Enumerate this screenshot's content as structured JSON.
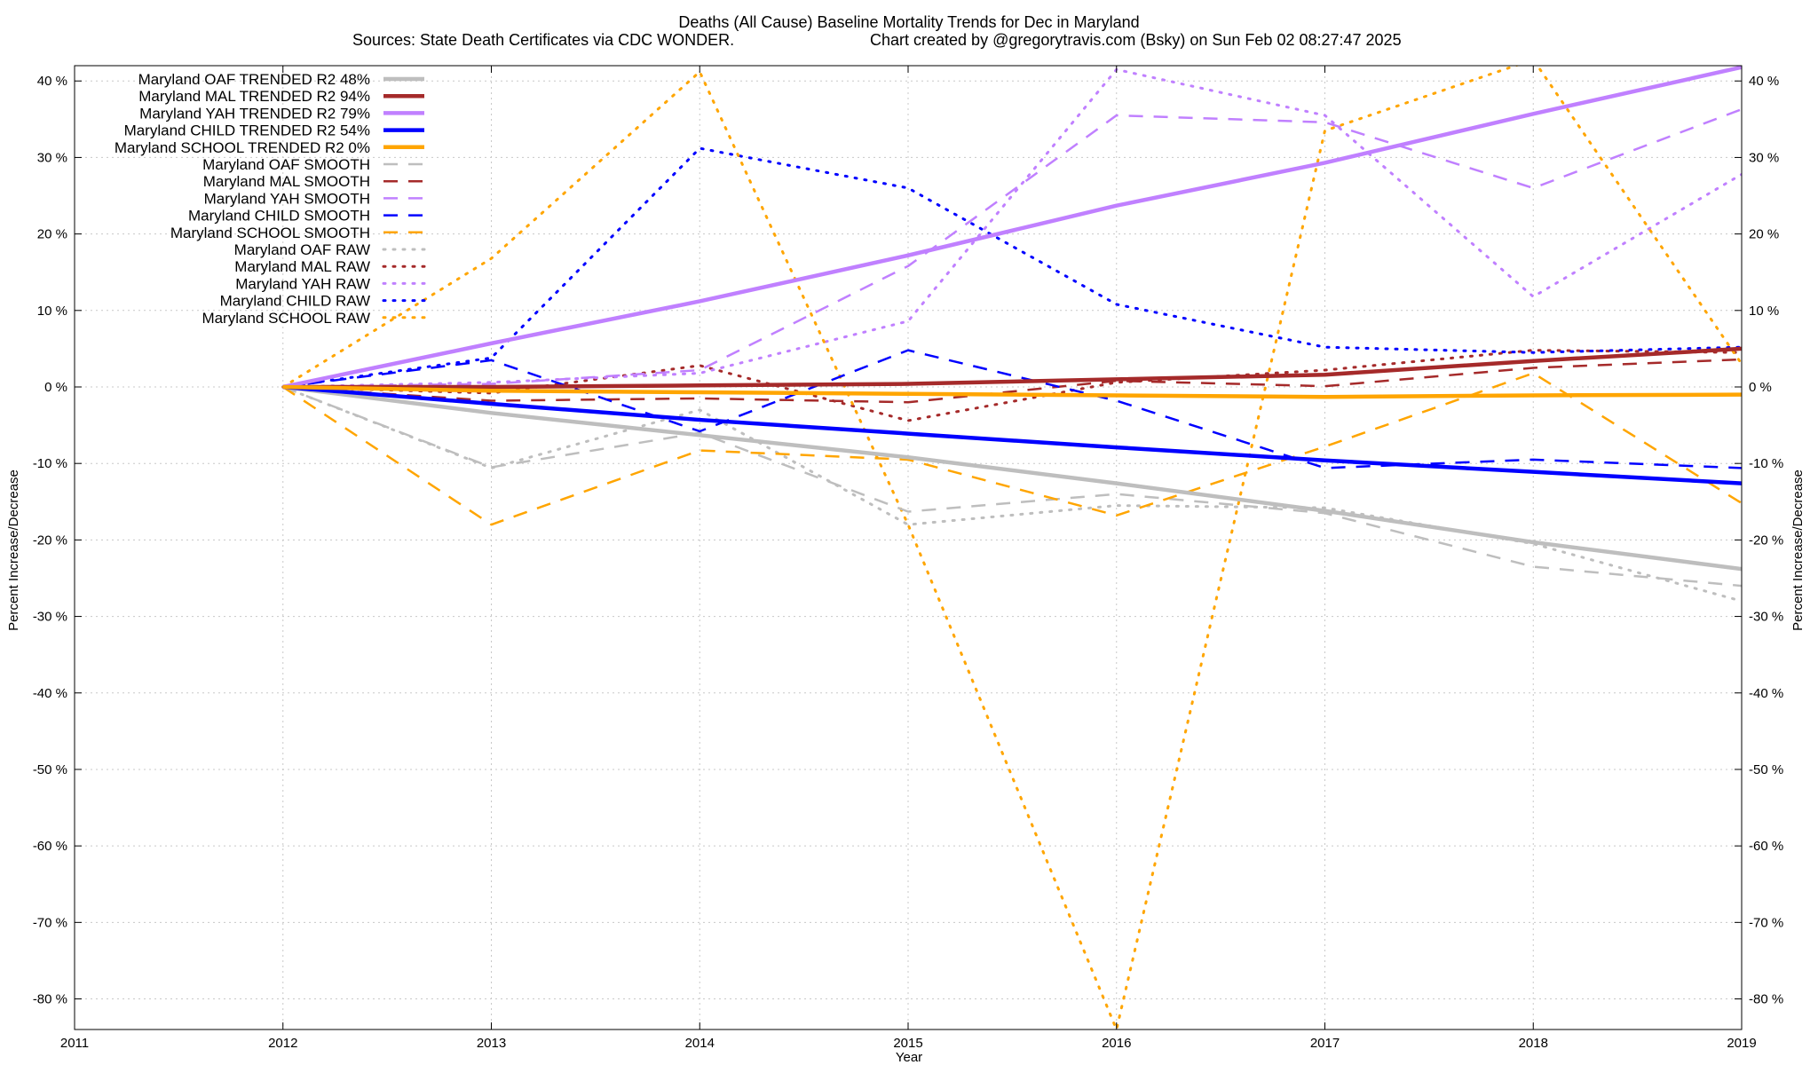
{
  "chart_data": {
    "type": "line",
    "title": "Deaths (All Cause)  Baseline Mortality Trends for Dec in Maryland",
    "subtitle_left": "Sources: State Death Certificates via CDC WONDER.",
    "subtitle_right": "Chart created by @gregorytravis.com (Bsky) on Sun Feb 02 08:27:47 2025",
    "xlabel": "Year",
    "ylabel_left": "Percent Increase/Decrease",
    "ylabel_right": "Percent Increase/Decrease",
    "xlim": [
      2011,
      2019
    ],
    "ylim": [
      -84,
      42
    ],
    "x_ticks": [
      "2011",
      "2012",
      "2013",
      "2014",
      "2015",
      "2016",
      "2017",
      "2018",
      "2019"
    ],
    "y_ticks": [
      "40 %",
      "30 %",
      "20 %",
      "10 %",
      "0 %",
      "-10 %",
      "-20 %",
      "-30 %",
      "-40 %",
      "-50 %",
      "-60 %",
      "-70 %",
      "-80 %"
    ],
    "y_tick_values": [
      40,
      30,
      20,
      10,
      0,
      -10,
      -20,
      -30,
      -40,
      -50,
      -60,
      -70,
      -80
    ],
    "grid": true,
    "legend_position": "top-left",
    "x": [
      2012,
      2013,
      2014,
      2015,
      2016,
      2017,
      2018,
      2019
    ],
    "series": [
      {
        "name": "Maryland OAF TRENDED R2  48%",
        "style": "trend",
        "color": "#bebebe",
        "values": [
          0,
          -3.4,
          -6.3,
          -9.2,
          -12.6,
          -16.2,
          -20.3,
          -23.8
        ]
      },
      {
        "name": "Maryland MAL TRENDED R2  94%",
        "style": "trend",
        "color": "#a52a2a",
        "values": [
          0,
          0,
          0.2,
          0.4,
          1.0,
          1.6,
          3.4,
          5.0
        ]
      },
      {
        "name": "Maryland YAH TRENDED R2  79%",
        "style": "trend",
        "color": "#c080ff",
        "values": [
          0,
          5.7,
          11.2,
          17.2,
          23.7,
          29.3,
          35.7,
          41.8
        ]
      },
      {
        "name": "Maryland CHILD TRENDED R2  54%",
        "style": "trend",
        "color": "#0000ff",
        "values": [
          0,
          -2.2,
          -4.3,
          -6.1,
          -7.9,
          -9.6,
          -11.1,
          -12.6
        ]
      },
      {
        "name": "Maryland SCHOOL TRENDED R2  0%",
        "style": "trend",
        "color": "#ffa500",
        "values": [
          0,
          -0.5,
          -0.7,
          -0.9,
          -1.1,
          -1.3,
          -1.1,
          -1.0
        ]
      },
      {
        "name": "Maryland OAF SMOOTH",
        "style": "smooth",
        "color": "#bebebe",
        "values": [
          0,
          -10.5,
          -6.0,
          -16.3,
          -14.0,
          -16.5,
          -23.5,
          -26.0
        ]
      },
      {
        "name": "Maryland MAL SMOOTH",
        "style": "smooth",
        "color": "#a52a2a",
        "values": [
          0,
          -1.8,
          -1.5,
          -2.0,
          0.8,
          0.1,
          2.5,
          3.6
        ]
      },
      {
        "name": "Maryland YAH SMOOTH",
        "style": "smooth",
        "color": "#c080ff",
        "values": [
          0,
          0.4,
          2.2,
          15.8,
          35.5,
          34.6,
          26.0,
          36.3
        ]
      },
      {
        "name": "Maryland CHILD SMOOTH",
        "style": "smooth",
        "color": "#0000ff",
        "values": [
          0,
          3.5,
          -5.8,
          4.8,
          -1.8,
          -10.6,
          -9.5,
          -10.6
        ]
      },
      {
        "name": "Maryland SCHOOL SMOOTH",
        "style": "smooth",
        "color": "#ffa500",
        "values": [
          0,
          -18.0,
          -8.3,
          -9.5,
          -16.8,
          -7.8,
          1.8,
          -15.2
        ]
      },
      {
        "name": "Maryland OAF RAW",
        "style": "raw",
        "color": "#bebebe",
        "values": [
          0,
          -10.6,
          -3.0,
          -18.0,
          -15.5,
          -15.8,
          -20.5,
          -28.0
        ]
      },
      {
        "name": "Maryland MAL RAW",
        "style": "raw",
        "color": "#a52a2a",
        "values": [
          0,
          -0.8,
          2.8,
          -4.4,
          0.6,
          2.2,
          4.8,
          4.5
        ]
      },
      {
        "name": "Maryland YAH RAW",
        "style": "raw",
        "color": "#c080ff",
        "values": [
          0,
          0.6,
          1.8,
          8.6,
          41.5,
          35.5,
          11.8,
          27.8
        ]
      },
      {
        "name": "Maryland CHILD RAW",
        "style": "raw",
        "color": "#0000ff",
        "values": [
          0,
          3.8,
          31.2,
          26.0,
          10.8,
          5.2,
          4.5,
          5.2
        ]
      },
      {
        "name": "Maryland SCHOOL RAW",
        "style": "raw",
        "color": "#ffa500",
        "values": [
          0,
          16.8,
          41.2,
          -18.0,
          -84.0,
          33.5,
          42.8,
          3.0
        ]
      }
    ]
  }
}
